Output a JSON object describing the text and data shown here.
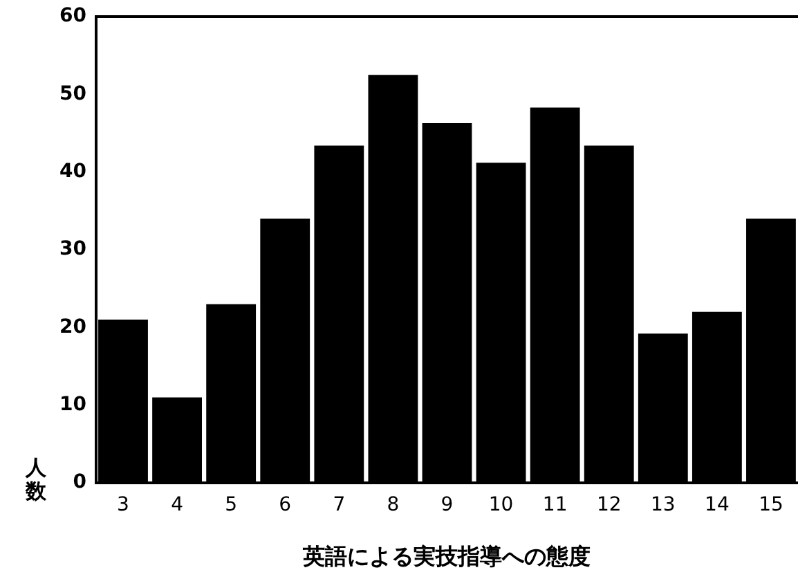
{
  "chart_data": {
    "type": "bar",
    "xlabel": "英語による実技指導への態度",
    "ylabel": "人数",
    "categories": [
      "3",
      "4",
      "5",
      "6",
      "7",
      "8",
      "9",
      "10",
      "11",
      "12",
      "13",
      "14",
      "15"
    ],
    "values": [
      21,
      11,
      23,
      34,
      43.4,
      52.5,
      46.3,
      41.2,
      48.3,
      43.4,
      19.2,
      22,
      34
    ],
    "color": "#000000",
    "ylim": [
      0,
      60
    ],
    "yticks": [
      0,
      10,
      20,
      30,
      40,
      50,
      60
    ],
    "grid": false,
    "legend": false
  }
}
